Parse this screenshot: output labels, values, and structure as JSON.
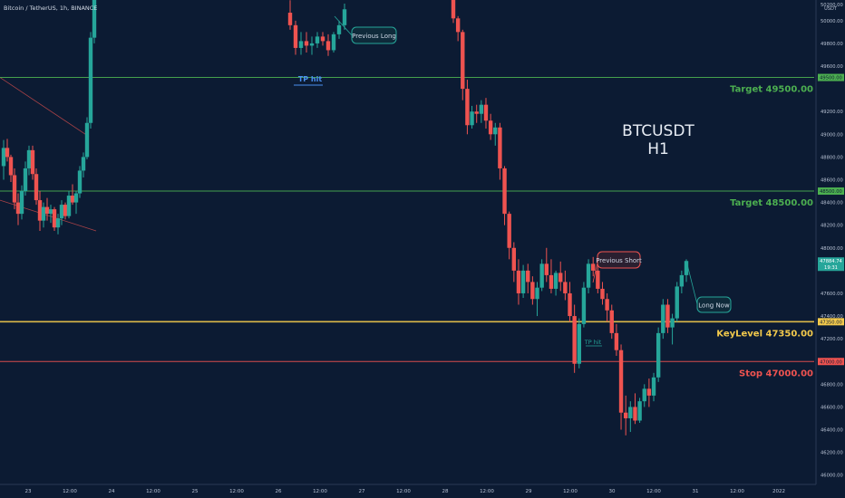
{
  "chart_data": {
    "type": "candlestick",
    "title": "Bitcoin / TetherUS, 1h, BINANCE",
    "watermark": [
      "BTCUSDT",
      "H1"
    ],
    "quote_currency": "USDT",
    "ylim": [
      45950,
      50150
    ],
    "y_ticks": [
      "50200.00",
      "50000.00",
      "49800.00",
      "49600.00",
      "49200.00",
      "49000.00",
      "48800.00",
      "48600.00",
      "48400.00",
      "48200.00",
      "48000.00",
      "47600.00",
      "47400.00",
      "47200.00",
      "46800.00",
      "46600.00",
      "46400.00",
      "46200.00",
      "46000.00"
    ],
    "x_ticks": [
      "23",
      "12:00",
      "24",
      "12:00",
      "25",
      "12:00",
      "26",
      "12:00",
      "27",
      "12:00",
      "28",
      "12:00",
      "29",
      "12:00",
      "30",
      "12:00",
      "31",
      "12:00",
      "2022"
    ],
    "levels": [
      {
        "name": "Target 49500.00",
        "value": 49500.0,
        "price_tag": "49500.00",
        "color": "#4caf50"
      },
      {
        "name": "Target 48500.00",
        "value": 48500.0,
        "price_tag": "48500.00",
        "color": "#4caf50"
      },
      {
        "name": "KeyLevel 47350.00",
        "value": 47350.0,
        "price_tag": "47350.00",
        "color": "#f2c94c"
      },
      {
        "name": "Stop 47000.00",
        "value": 47000.0,
        "price_tag": "47000.00",
        "color": "#ef5350"
      }
    ],
    "last_price": {
      "value": "47884.74",
      "countdown": "19:31"
    },
    "annotations": [
      {
        "text": "Previous Long",
        "style": "teal"
      },
      {
        "text": "Previous Short",
        "style": "red"
      },
      {
        "text": "Long Now",
        "style": "teal"
      },
      {
        "text": "TP hit",
        "style": "blue"
      },
      {
        "text": "TP hit",
        "style": "teal-small"
      }
    ],
    "colors": {
      "up": "#26a69a",
      "down": "#ef5350",
      "background": "#0c1b33"
    },
    "candles": [
      [
        48720,
        48950,
        48600,
        48880
      ],
      [
        48880,
        48960,
        48760,
        48800
      ],
      [
        48800,
        48820,
        48580,
        48640
      ],
      [
        48640,
        48700,
        48340,
        48400
      ],
      [
        48400,
        48480,
        48200,
        48300
      ],
      [
        48300,
        48550,
        48250,
        48500
      ],
      [
        48500,
        48760,
        48460,
        48700
      ],
      [
        48700,
        48900,
        48640,
        48860
      ],
      [
        48860,
        48900,
        48600,
        48650
      ],
      [
        48650,
        48700,
        48380,
        48420
      ],
      [
        48420,
        48500,
        48150,
        48240
      ],
      [
        48240,
        48400,
        48180,
        48360
      ],
      [
        48360,
        48440,
        48240,
        48300
      ],
      [
        48300,
        48380,
        48220,
        48340
      ],
      [
        48340,
        48360,
        48150,
        48180
      ],
      [
        48180,
        48300,
        48120,
        48260
      ],
      [
        48260,
        48420,
        48200,
        48380
      ],
      [
        48380,
        48400,
        48250,
        48280
      ],
      [
        48280,
        48500,
        48260,
        48460
      ],
      [
        48460,
        48560,
        48380,
        48400
      ],
      [
        48400,
        48500,
        48300,
        48480
      ],
      [
        48480,
        48720,
        48440,
        48680
      ],
      [
        48680,
        48840,
        48620,
        48800
      ],
      [
        48800,
        49150,
        48780,
        49100
      ],
      [
        49100,
        49900,
        49050,
        49850
      ],
      [
        49850,
        50300,
        49800,
        50250
      ],
      [
        50070,
        50180,
        49920,
        49960
      ],
      [
        49960,
        50000,
        49700,
        49760
      ],
      [
        49760,
        49900,
        49700,
        49820
      ],
      [
        49820,
        49900,
        49720,
        49780
      ],
      [
        49780,
        49860,
        49700,
        49800
      ],
      [
        49800,
        49900,
        49760,
        49860
      ],
      [
        49860,
        49900,
        49780,
        49820
      ],
      [
        49820,
        49880,
        49690,
        49740
      ],
      [
        49740,
        49900,
        49720,
        49880
      ],
      [
        49880,
        50000,
        49840,
        49960
      ],
      [
        49960,
        50150,
        49920,
        50100
      ],
      [
        50200,
        50220,
        49980,
        50020
      ],
      [
        50020,
        50040,
        49820,
        49900
      ],
      [
        49900,
        49920,
        49300,
        49400
      ],
      [
        49400,
        49480,
        49000,
        49080
      ],
      [
        49080,
        49250,
        49050,
        49200
      ],
      [
        49200,
        49260,
        49100,
        49180
      ],
      [
        49180,
        49300,
        49100,
        49260
      ],
      [
        49260,
        49320,
        49050,
        49120
      ],
      [
        49120,
        49180,
        48950,
        49000
      ],
      [
        49000,
        49100,
        48900,
        49060
      ],
      [
        49060,
        49100,
        48600,
        48700
      ],
      [
        48700,
        48720,
        48200,
        48300
      ],
      [
        48300,
        48320,
        47900,
        48000
      ],
      [
        48000,
        48050,
        47700,
        47800
      ],
      [
        47800,
        47900,
        47500,
        47600
      ],
      [
        47600,
        47850,
        47560,
        47800
      ],
      [
        47800,
        47860,
        47600,
        47700
      ],
      [
        47700,
        47750,
        47500,
        47550
      ],
      [
        47550,
        47700,
        47400,
        47650
      ],
      [
        47650,
        47900,
        47620,
        47860
      ],
      [
        47860,
        48000,
        47700,
        47760
      ],
      [
        47760,
        47900,
        47600,
        47640
      ],
      [
        47640,
        47800,
        47580,
        47780
      ],
      [
        47780,
        47880,
        47620,
        47700
      ],
      [
        47700,
        47800,
        47540,
        47600
      ],
      [
        47600,
        47700,
        47350,
        47400
      ],
      [
        47400,
        47500,
        46900,
        46980
      ],
      [
        46980,
        47380,
        46940,
        47330
      ],
      [
        47330,
        47700,
        47300,
        47650
      ],
      [
        47650,
        47900,
        47600,
        47860
      ],
      [
        47860,
        47920,
        47750,
        47800
      ],
      [
        47800,
        47850,
        47600,
        47640
      ],
      [
        47640,
        47700,
        47500,
        47550
      ],
      [
        47550,
        47600,
        47350,
        47450
      ],
      [
        47450,
        47500,
        47200,
        47250
      ],
      [
        47250,
        47330,
        47050,
        47100
      ],
      [
        47100,
        47150,
        46400,
        46550
      ],
      [
        46550,
        46700,
        46350,
        46500
      ],
      [
        46500,
        46650,
        46380,
        46600
      ],
      [
        46600,
        46720,
        46450,
        46480
      ],
      [
        46480,
        46680,
        46460,
        46650
      ],
      [
        46650,
        46800,
        46600,
        46760
      ],
      [
        46760,
        46850,
        46600,
        46700
      ],
      [
        46700,
        46900,
        46650,
        46860
      ],
      [
        46860,
        47300,
        46820,
        47250
      ],
      [
        47250,
        47550,
        47200,
        47500
      ],
      [
        47500,
        47550,
        47250,
        47300
      ],
      [
        47300,
        47420,
        47150,
        47380
      ],
      [
        47380,
        47700,
        47350,
        47660
      ],
      [
        47660,
        47800,
        47600,
        47760
      ],
      [
        47760,
        47900,
        47700,
        47884.74
      ]
    ]
  }
}
